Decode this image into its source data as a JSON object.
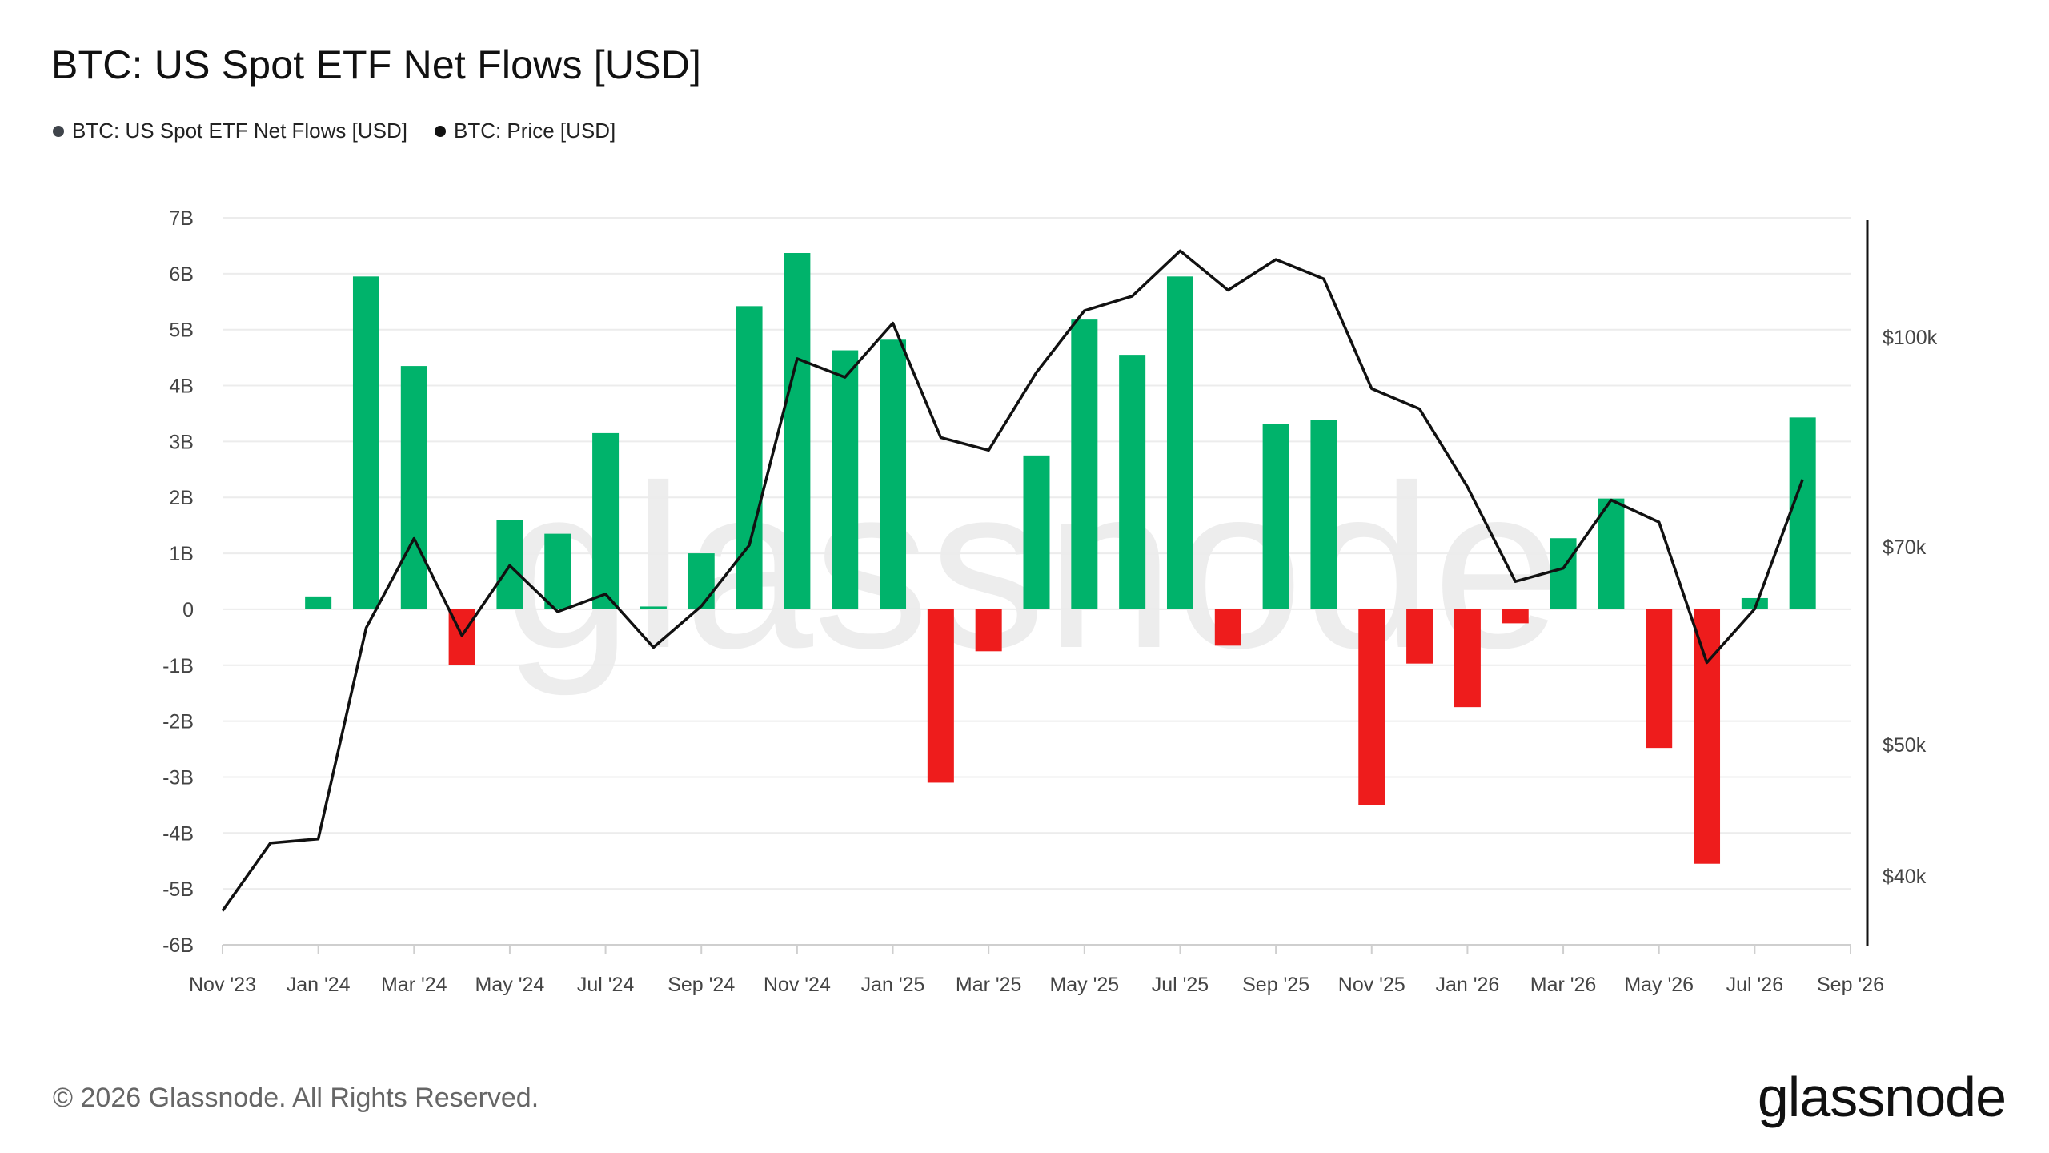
{
  "header": {
    "title": "BTC: US Spot ETF Net Flows [USD]"
  },
  "legend": [
    {
      "label": "BTC: US Spot ETF Net Flows [USD]",
      "color": "#3f444b"
    },
    {
      "label": "BTC: Price [USD]",
      "color": "#111111"
    }
  ],
  "footer": {
    "copyright": "© 2026 Glassnode. All Rights Reserved.",
    "brand": "glassnode"
  },
  "watermark": "glassnode",
  "colors": {
    "positive": "#00b36b",
    "negative": "#ee1c1c",
    "price_line": "#111111",
    "grid": "#ececec"
  },
  "chart_data": {
    "type": "bar",
    "categories": [
      "Jan 2024",
      "Feb 2024",
      "Mar 2024",
      "Apr 2024",
      "May 2024",
      "Jun 2024",
      "Jul 2024",
      "Aug 2024",
      "Sep 2024",
      "Oct 2024",
      "Nov 2024",
      "Dec 2024",
      "Jan 2025",
      "Feb 2025",
      "Mar 2025",
      "Apr 2025",
      "May 2025",
      "Jun 2025",
      "Jul 2025",
      "Aug 2025",
      "Sep 2025",
      "Oct 2025",
      "Nov 2025",
      "Dec 2025",
      "Jan 2026",
      "Feb 2026",
      "Mar 2026",
      "Apr 2026",
      "May 2026",
      "Jun 2026",
      "Jul 2026",
      "Aug 2026"
    ],
    "x_tick_labels": [
      "Nov '23",
      "Jan '24",
      "Mar '24",
      "May '24",
      "Jul '24",
      "Sep '24",
      "Nov '24",
      "Jan '25",
      "Mar '25",
      "May '25",
      "Jul '25",
      "Sep '25",
      "Nov '25",
      "Jan '26",
      "Mar '26",
      "May '26",
      "Jul '26",
      "Sep '26"
    ],
    "series": [
      {
        "name": "BTC: US Spot ETF Net Flows [USD]",
        "axis": "left",
        "values": [
          0.23,
          5.95,
          4.35,
          -1.0,
          1.6,
          1.35,
          3.15,
          0.05,
          1.0,
          5.42,
          6.37,
          4.63,
          4.82,
          -3.1,
          -0.75,
          2.75,
          5.18,
          4.55,
          5.95,
          -0.65,
          3.32,
          3.38,
          -3.5,
          -0.97,
          -1.75,
          -0.25,
          1.27,
          1.98,
          -2.48,
          -4.55,
          0.2,
          3.43
        ]
      },
      {
        "name": "BTC: Price [USD]",
        "axis": "right",
        "type": "line",
        "x": [
          "Nov 2023",
          "Dec 2023",
          "Jan 2024",
          "Feb 2024",
          "Mar 2024",
          "Apr 2024",
          "May 2024",
          "Jun 2024",
          "Jul 2024",
          "Aug 2024",
          "Sep 2024",
          "Oct 2024",
          "Nov 2024",
          "Dec 2024",
          "Jan 2025",
          "Feb 2025",
          "Mar 2025",
          "Apr 2025",
          "May 2025",
          "Jun 2025",
          "Jul 2025",
          "Aug 2025",
          "Sep 2025",
          "Oct 2025",
          "Nov 2025",
          "Dec 2025",
          "Jan 2026",
          "Feb 2026",
          "Mar 2026",
          "Apr 2026",
          "May 2026",
          "Jun 2026",
          "Jul 2026",
          "Aug 2026"
        ],
        "values": [
          37700,
          42300,
          42600,
          61000,
          71000,
          60200,
          67800,
          62700,
          64600,
          59000,
          63300,
          70200,
          96400,
          93400,
          102400,
          84300,
          82500,
          94200,
          104600,
          107200,
          115800,
          108300,
          114100,
          110400,
          91600,
          88500,
          77500,
          66000,
          67500,
          75800,
          73000,
          57500,
          63000,
          78500
        ]
      }
    ],
    "y_left": {
      "ticks": [
        "7B",
        "6B",
        "5B",
        "4B",
        "3B",
        "2B",
        "1B",
        "0",
        "-1B",
        "-2B",
        "-3B",
        "-4B",
        "-5B",
        "-6B"
      ],
      "range": [
        -6,
        7
      ]
    },
    "y_right": {
      "ticks": [
        "$100k",
        "$70k",
        "$50k",
        "$40k"
      ],
      "scale": "log"
    },
    "grid": true,
    "legend_position": "top-left"
  }
}
